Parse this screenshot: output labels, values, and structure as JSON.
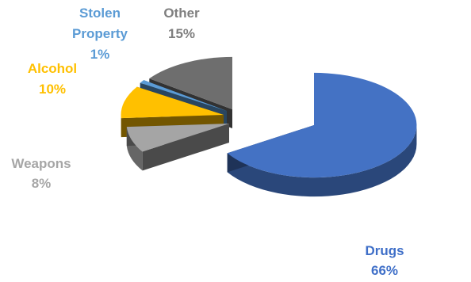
{
  "chart_data": {
    "type": "pie",
    "style": "3d-exploded",
    "title": "",
    "legend": "none",
    "slices": [
      {
        "label": "Drugs",
        "value": 66,
        "display": "66%",
        "color": "#4472C4"
      },
      {
        "label": "Weapons",
        "value": 8,
        "display": "8%",
        "color": "#A5A5A5"
      },
      {
        "label": "Alcohol",
        "value": 10,
        "display": "10%",
        "color": "#FFC000"
      },
      {
        "label": "Stolen Property",
        "value": 1,
        "display": "1%",
        "color": "#5B9BD5"
      },
      {
        "label": "Other",
        "value": 15,
        "display": "15%",
        "color": "#6E6E6E"
      }
    ],
    "label_colors": {
      "Drugs": "#3F6FC8",
      "Weapons": "#A6A6A6",
      "Alcohol": "#FFC000",
      "Stolen Property": "#5B9BD5",
      "Other": "#7F7F7F"
    }
  }
}
